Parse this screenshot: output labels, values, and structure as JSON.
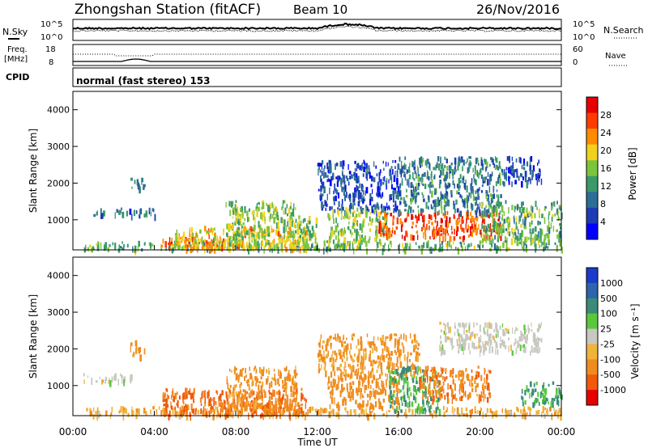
{
  "header": {
    "station": "Zhongshan Station (fitACF)",
    "beam": "Beam 10",
    "date": "26/Nov/2016"
  },
  "noise_panel": {
    "left_label": "N.Sky",
    "right_label": "N.Search",
    "left_ticks": [
      "10^5",
      "10^0"
    ],
    "right_ticks": [
      "10^5",
      "10^0"
    ]
  },
  "freq_panel": {
    "left_label_1": "Freq.",
    "left_label_2": "[MHz]",
    "left_ticks": [
      "18",
      "8"
    ],
    "right_label": "Nave",
    "right_ticks": [
      "60",
      "0"
    ]
  },
  "cpid": {
    "label": "CPID",
    "mode": "normal (fast stereo) 153"
  },
  "power_panel": {
    "ylabel": "Slant Range [km]",
    "yticks": [
      "4000",
      "3000",
      "2000",
      "1000"
    ],
    "colorbar_label": "Power [dB]",
    "colorbar_ticks": [
      "28",
      "24",
      "20",
      "16",
      "12",
      "8",
      "4"
    ],
    "colors": [
      "#0000ff",
      "#1e3cb4",
      "#2d6e96",
      "#3a9a6a",
      "#7cc43a",
      "#f0d21e",
      "#ff8c00",
      "#ff3c00",
      "#e60000"
    ]
  },
  "velocity_panel": {
    "ylabel": "Slant Range [km]",
    "yticks": [
      "4000",
      "3000",
      "2000",
      "1000"
    ],
    "colorbar_label": "Velocity [m s⁻¹]",
    "colorbar_ticks": [
      "1000",
      "500",
      "100",
      "25",
      "-25",
      "-100",
      "-500",
      "-1000"
    ],
    "colors": [
      "#1a3cc8",
      "#2d64aa",
      "#3a8c78",
      "#5ac83c",
      "#c8c8c0",
      "#f0b43c",
      "#f08c1e",
      "#f05a0a",
      "#e60000"
    ]
  },
  "xaxis": {
    "label": "Time UT",
    "ticks": [
      "00:00",
      "04:00",
      "08:00",
      "12:00",
      "16:00",
      "20:00",
      "00:00"
    ]
  },
  "chart_data": {
    "type": "heatmap",
    "x_range_hours": [
      0,
      24
    ],
    "y_range_km": [
      180,
      4500
    ],
    "power_clusters": [
      {
        "t": [
          0.5,
          24
        ],
        "r": [
          180,
          400
        ],
        "v": 14
      },
      {
        "t": [
          1,
          4
        ],
        "r": [
          1100,
          1300
        ],
        "v": 8
      },
      {
        "t": [
          2.8,
          3.5
        ],
        "r": [
          1800,
          2200
        ],
        "v": 10
      },
      {
        "t": [
          4.3,
          7.5
        ],
        "r": [
          180,
          500
        ],
        "v": 24
      },
      {
        "t": [
          5,
          11.5
        ],
        "r": [
          200,
          800
        ],
        "v": 20
      },
      {
        "t": [
          7.5,
          11
        ],
        "r": [
          300,
          1500
        ],
        "v": 16
      },
      {
        "t": [
          11,
          12
        ],
        "r": [
          200,
          1100
        ],
        "v": 16
      },
      {
        "t": [
          12,
          16
        ],
        "r": [
          1200,
          2600
        ],
        "v": 6
      },
      {
        "t": [
          12.5,
          15.5
        ],
        "r": [
          400,
          1300
        ],
        "v": 16
      },
      {
        "t": [
          15,
          21
        ],
        "r": [
          500,
          1200
        ],
        "v": 26
      },
      {
        "t": [
          16,
          21
        ],
        "r": [
          1200,
          2700
        ],
        "v": 10
      },
      {
        "t": [
          20,
          24
        ],
        "r": [
          400,
          1500
        ],
        "v": 14
      },
      {
        "t": [
          21,
          23
        ],
        "r": [
          2000,
          2700
        ],
        "v": 6
      }
    ],
    "velocity_clusters": [
      {
        "t": [
          0.5,
          3
        ],
        "r": [
          1100,
          1300
        ],
        "v": 0
      },
      {
        "t": [
          0.5,
          24
        ],
        "r": [
          180,
          400
        ],
        "v": -50
      },
      {
        "t": [
          2.8,
          3.5
        ],
        "r": [
          1800,
          2200
        ],
        "v": -100
      },
      {
        "t": [
          4.3,
          11.5
        ],
        "r": [
          180,
          900
        ],
        "v": -300
      },
      {
        "t": [
          7.5,
          11
        ],
        "r": [
          300,
          1500
        ],
        "v": -100
      },
      {
        "t": [
          12,
          17
        ],
        "r": [
          1300,
          2400
        ],
        "v": -80
      },
      {
        "t": [
          12.5,
          16
        ],
        "r": [
          400,
          1300
        ],
        "v": -150
      },
      {
        "t": [
          15.5,
          18
        ],
        "r": [
          300,
          1500
        ],
        "v": 60
      },
      {
        "t": [
          17,
          20.5
        ],
        "r": [
          600,
          1500
        ],
        "v": -200
      },
      {
        "t": [
          18,
          23
        ],
        "r": [
          1900,
          2700
        ],
        "v": 0
      },
      {
        "t": [
          22,
          24
        ],
        "r": [
          500,
          1100
        ],
        "v": 80
      }
    ]
  }
}
